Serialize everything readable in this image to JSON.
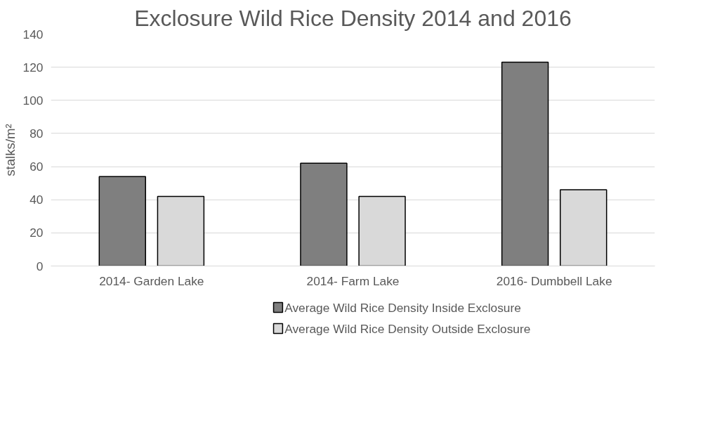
{
  "chart_data": {
    "type": "bar",
    "title": "Exclosure Wild Rice Density 2014 and 2016",
    "ylabel": "stalks/m²",
    "categories": [
      "2014- Garden Lake",
      "2014- Farm Lake",
      "2016- Dumbbell Lake"
    ],
    "series": [
      {
        "name": "Average Wild Rice Density Inside Exclosure",
        "color": "#7f7f7f",
        "values": [
          54,
          62,
          123
        ]
      },
      {
        "name": "Average Wild Rice Density Outside Exclosure",
        "color": "#d9d9d9",
        "values": [
          42,
          42,
          46
        ]
      }
    ],
    "ylim": [
      0,
      140
    ],
    "yticks": [
      0,
      20,
      40,
      60,
      80,
      100,
      120,
      140
    ],
    "grid": "y",
    "legend": "bottom"
  }
}
